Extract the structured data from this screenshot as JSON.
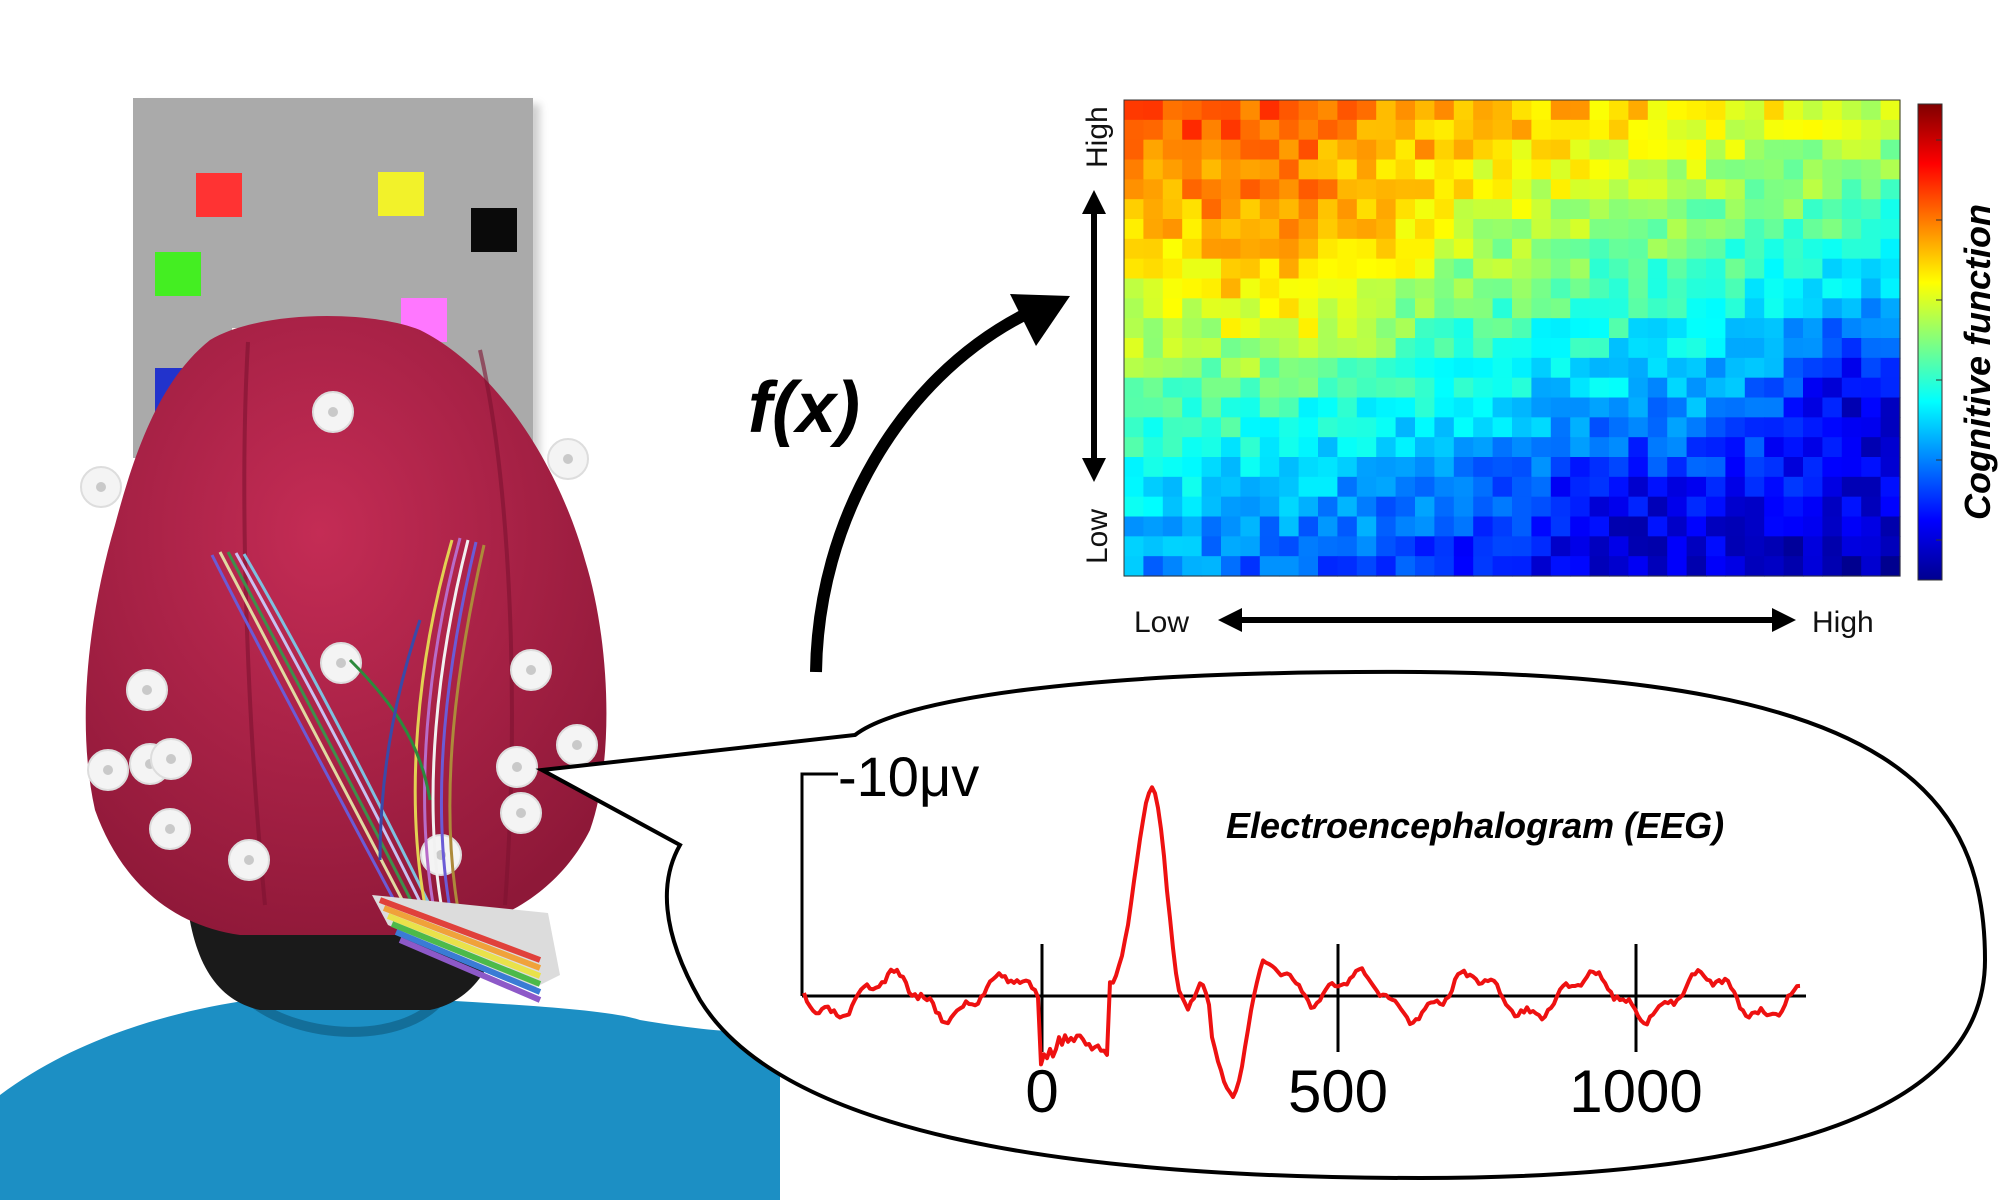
{
  "function_label": "f(x)",
  "heatmap": {
    "y_high_label": "High",
    "y_low_label": "Low",
    "x_low_label": "Low",
    "x_high_label": "High",
    "colorbar_label": "Cognitive function",
    "colormap": [
      "#00008f",
      "#0000ff",
      "#0080ff",
      "#00ffff",
      "#80ff80",
      "#ffff00",
      "#ff8000",
      "#ff0000",
      "#800000"
    ]
  },
  "eeg": {
    "title": "Electroencephalogram (EEG)",
    "scale_label": "-10μv",
    "trace_color": "#ee1111",
    "ticks": [
      "0",
      "500",
      "1000"
    ]
  },
  "stimulus_display": {
    "background": "#aaaaaa",
    "square_colors": [
      "#ff3333",
      "#f2f22a",
      "#0a0a0a",
      "#44ee22",
      "#ff77ff",
      "#f4f4ee",
      "#2233cc"
    ]
  },
  "photo": {
    "cap_color": "#b8244a",
    "sweater_color": "#1c8fc4",
    "hair_color": "#1a1a1a"
  }
}
